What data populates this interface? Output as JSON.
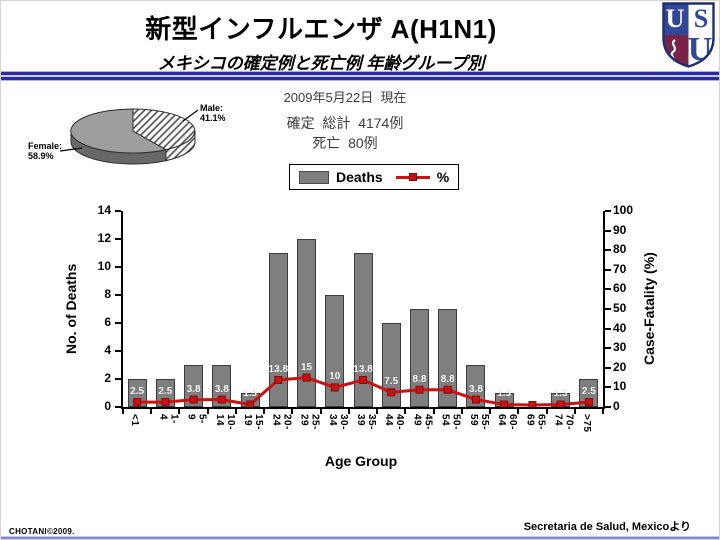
{
  "header": {
    "title": "新型インフルエンザ A(H1N1)",
    "subtitle": "メキシコの確定例と死亡例 年齢グループ別"
  },
  "logo": {
    "top_left_letter": "U",
    "top_right_letter": "S",
    "bottom_letter": "U",
    "blue": "#31479b",
    "maroon": "#7c2247"
  },
  "info": {
    "as_of": "2009年5月22日  現在",
    "confirmed": "確定  総計  4174例",
    "deaths": "死亡  80例"
  },
  "pie_labels": {
    "male_title": "Male:",
    "male_value": "41.1%",
    "female_title": "Female:",
    "female_value": "58.9%"
  },
  "legend": {
    "bar_label": "Deaths",
    "line_label": "%"
  },
  "axis": {
    "xlabel": "Age Group",
    "ylabel_left": "No. of Deaths",
    "ylabel_right": "Case-Fatality (%)"
  },
  "footer": {
    "credit": "CHOTANI©2009.",
    "source": "Secretaria de Salud, Mexicoより"
  },
  "colors": {
    "bar": "#7f7f7f",
    "bar_border": "#3c3c3c",
    "line": "#cc1111",
    "marker_edge": "#7d0d0d",
    "header_navy": "#2c2ca0",
    "pie_female": "#9e9e9e",
    "pie_side": "#686868"
  },
  "chart_data": [
    {
      "type": "pie",
      "style": "3d",
      "slices": [
        {
          "label": "Male",
          "value": 41.1,
          "fill": "hatched"
        },
        {
          "label": "Female",
          "value": 58.9,
          "fill": "solid-gray"
        }
      ]
    },
    {
      "type": "bar+line",
      "categories": [
        "<1",
        "1-4",
        "5-9",
        "10-14",
        "15-19",
        "20-24",
        "25-29",
        "30-34",
        "35-39",
        "40-44",
        "45-49",
        "50-54",
        "55-59",
        "60-64",
        "65-69",
        "70-74",
        ">75"
      ],
      "series": [
        {
          "name": "Deaths",
          "type": "bar",
          "axis": "left",
          "values": [
            2,
            2,
            3,
            3,
            1,
            11,
            12,
            8,
            11,
            6,
            7,
            7,
            3,
            1,
            0,
            1,
            2
          ]
        },
        {
          "name": "%",
          "type": "line",
          "axis": "right",
          "values": [
            2.5,
            2.5,
            3.8,
            3.8,
            1.3,
            13.8,
            15,
            10,
            13.8,
            7.5,
            8.8,
            8.8,
            3.8,
            1.3,
            0,
            1.3,
            2.5
          ],
          "point_labels": [
            "2.5",
            "2.5",
            "3.8",
            "3.8",
            "1.3",
            "13.8",
            "15",
            "10",
            "13.8",
            "7.5",
            "8.8",
            "8.8",
            "3.8",
            "1.3",
            "",
            "1.3",
            "2.5"
          ]
        }
      ],
      "xlabel": "Age Group",
      "ylabel_left": "No. of Deaths",
      "ylabel_right": "Case-Fatality (%)",
      "ylim_left": [
        0,
        14
      ],
      "ytick_step_left": 2,
      "ylim_right": [
        0,
        100
      ],
      "ytick_step_right": 10,
      "grid": false,
      "legend_position": "top-center"
    }
  ]
}
